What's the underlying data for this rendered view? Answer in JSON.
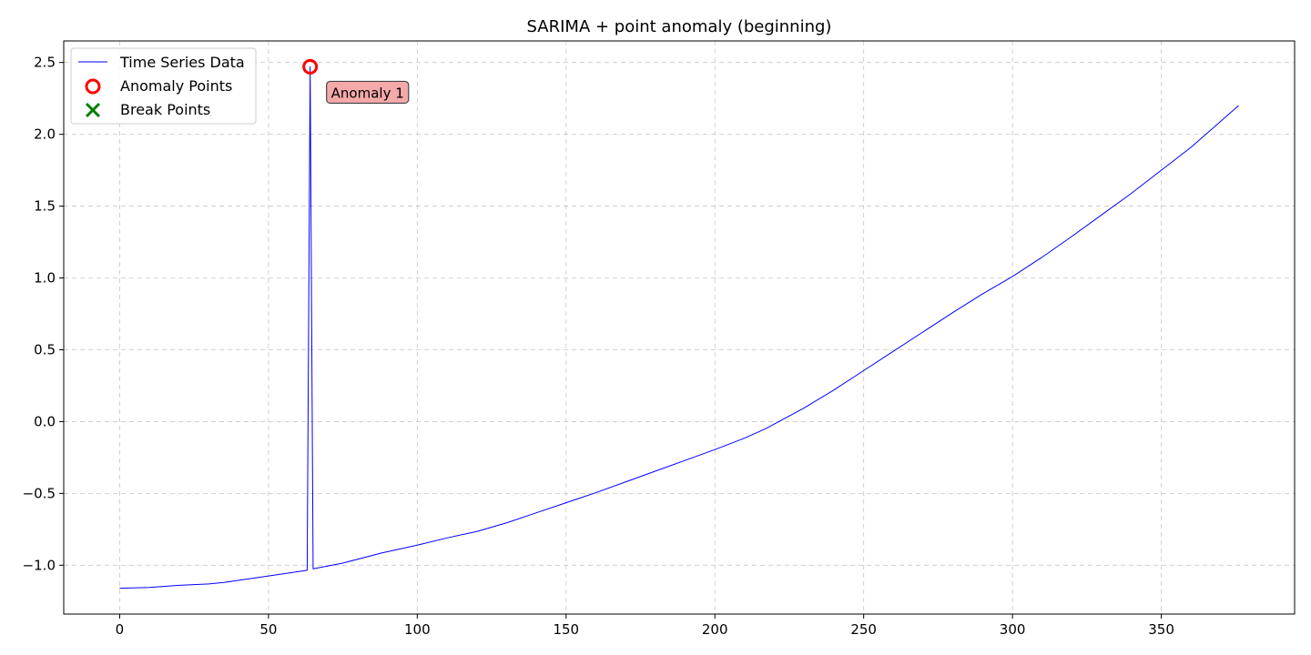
{
  "chart_data": {
    "type": "line",
    "title": "SARIMA + point anomaly (beginning)",
    "xlabel": "",
    "ylabel": "",
    "xlim": [
      -18.8,
      394.8
    ],
    "ylim": [
      -1.34,
      2.65
    ],
    "x_ticks": [
      0,
      50,
      100,
      150,
      200,
      250,
      300,
      350
    ],
    "x_tick_labels": [
      "0",
      "50",
      "100",
      "150",
      "200",
      "250",
      "300",
      "350"
    ],
    "y_ticks": [
      -1.0,
      -0.5,
      0.0,
      0.5,
      1.0,
      1.5,
      2.0,
      2.5
    ],
    "y_tick_labels": [
      "−1.0",
      "−0.5",
      "0.0",
      "0.5",
      "1.0",
      "1.5",
      "2.0",
      "2.5"
    ],
    "grid": true,
    "legend_position": "top-left",
    "series": [
      {
        "name": "Time Series Data",
        "color": "#0000ff",
        "x": [
          0,
          10,
          20,
          30,
          35,
          40,
          50,
          63,
          64,
          65,
          75,
          88,
          100,
          110,
          120,
          130,
          140,
          150,
          160,
          170,
          180,
          190,
          200,
          210,
          217,
          230,
          240,
          250,
          260,
          270,
          280,
          290,
          300,
          310,
          320,
          330,
          340,
          350,
          360,
          376
        ],
        "y": [
          -1.16,
          -1.155,
          -1.14,
          -1.13,
          -1.12,
          -1.105,
          -1.075,
          -1.035,
          2.47,
          -1.025,
          -0.985,
          -0.915,
          -0.86,
          -0.81,
          -0.765,
          -0.705,
          -0.635,
          -0.565,
          -0.495,
          -0.42,
          -0.345,
          -0.27,
          -0.195,
          -0.115,
          -0.05,
          0.095,
          0.22,
          0.355,
          0.49,
          0.625,
          0.76,
          0.89,
          1.01,
          1.145,
          1.29,
          1.44,
          1.59,
          1.75,
          1.91,
          2.2
        ]
      }
    ],
    "anomaly_points": {
      "name": "Anomaly Points",
      "color": "#ff0000",
      "points": [
        {
          "x": 64,
          "y": 2.47
        }
      ]
    },
    "break_points": {
      "name": "Break Points",
      "color": "#008000",
      "points": []
    },
    "annotations": [
      {
        "text": "Anomaly 1",
        "x": 64,
        "y": 2.47,
        "box_color": "#f4a0a0"
      }
    ]
  }
}
